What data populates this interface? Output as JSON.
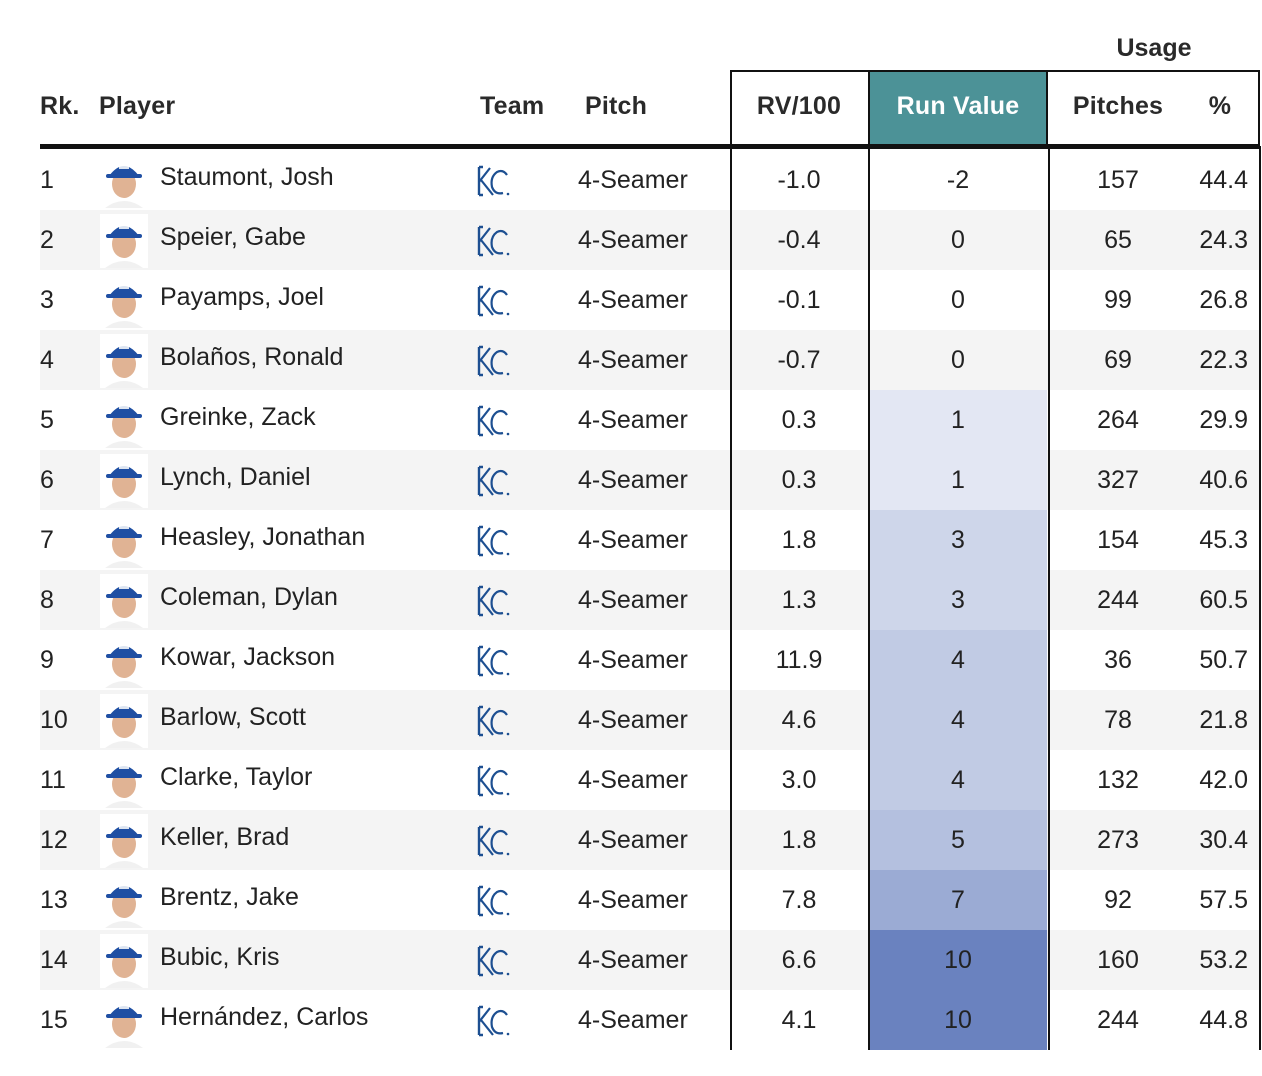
{
  "headers": {
    "rank": "Rk.",
    "player": "Player",
    "team": "Team",
    "pitch": "Pitch",
    "rv100": "RV/100",
    "run_value": "Run Value",
    "usage": "Usage",
    "pitches": "Pitches",
    "pct": "%"
  },
  "colors": {
    "run_value_header": "#4c9297",
    "heat_base": "#6a82bf",
    "team_logo": "#1d4f91"
  },
  "rows": [
    {
      "rank": "1",
      "player": "Staumont, Josh",
      "team_icon": "kc-royals-logo",
      "pitch": "4-Seamer",
      "rv100": "-1.0",
      "run_value": "-2",
      "pitches": "157",
      "pct": "44.4",
      "heat": 0
    },
    {
      "rank": "2",
      "player": "Speier, Gabe",
      "team_icon": "kc-royals-logo",
      "pitch": "4-Seamer",
      "rv100": "-0.4",
      "run_value": "0",
      "pitches": "65",
      "pct": "24.3",
      "heat": 0
    },
    {
      "rank": "3",
      "player": "Payamps, Joel",
      "team_icon": "kc-royals-logo",
      "pitch": "4-Seamer",
      "rv100": "-0.1",
      "run_value": "0",
      "pitches": "99",
      "pct": "26.8",
      "heat": 0
    },
    {
      "rank": "4",
      "player": "Bolaños, Ronald",
      "team_icon": "kc-royals-logo",
      "pitch": "4-Seamer",
      "rv100": "-0.7",
      "run_value": "0",
      "pitches": "69",
      "pct": "22.3",
      "heat": 0
    },
    {
      "rank": "5",
      "player": "Greinke, Zack",
      "team_icon": "kc-royals-logo",
      "pitch": "4-Seamer",
      "rv100": "0.3",
      "run_value": "1",
      "pitches": "264",
      "pct": "29.9",
      "heat": 0.06
    },
    {
      "rank": "6",
      "player": "Lynch, Daniel",
      "team_icon": "kc-royals-logo",
      "pitch": "4-Seamer",
      "rv100": "0.3",
      "run_value": "1",
      "pitches": "327",
      "pct": "40.6",
      "heat": 0.06
    },
    {
      "rank": "7",
      "player": "Heasley, Jonathan",
      "team_icon": "kc-royals-logo",
      "pitch": "4-Seamer",
      "rv100": "1.8",
      "run_value": "3",
      "pitches": "154",
      "pct": "45.3",
      "heat": 0.22
    },
    {
      "rank": "8",
      "player": "Coleman, Dylan",
      "team_icon": "kc-royals-logo",
      "pitch": "4-Seamer",
      "rv100": "1.3",
      "run_value": "3",
      "pitches": "244",
      "pct": "60.5",
      "heat": 0.22
    },
    {
      "rank": "9",
      "player": "Kowar, Jackson",
      "team_icon": "kc-royals-logo",
      "pitch": "4-Seamer",
      "rv100": "11.9",
      "run_value": "4",
      "pitches": "36",
      "pct": "50.7",
      "heat": 0.32
    },
    {
      "rank": "10",
      "player": "Barlow, Scott",
      "team_icon": "kc-royals-logo",
      "pitch": "4-Seamer",
      "rv100": "4.6",
      "run_value": "4",
      "pitches": "78",
      "pct": "21.8",
      "heat": 0.32
    },
    {
      "rank": "11",
      "player": "Clarke, Taylor",
      "team_icon": "kc-royals-logo",
      "pitch": "4-Seamer",
      "rv100": "3.0",
      "run_value": "4",
      "pitches": "132",
      "pct": "42.0",
      "heat": 0.32
    },
    {
      "rank": "12",
      "player": "Keller, Brad",
      "team_icon": "kc-royals-logo",
      "pitch": "4-Seamer",
      "rv100": "1.8",
      "run_value": "5",
      "pitches": "273",
      "pct": "30.4",
      "heat": 0.42
    },
    {
      "rank": "13",
      "player": "Brentz, Jake",
      "team_icon": "kc-royals-logo",
      "pitch": "4-Seamer",
      "rv100": "7.8",
      "run_value": "7",
      "pitches": "92",
      "pct": "57.5",
      "heat": 0.62
    },
    {
      "rank": "14",
      "player": "Bubic, Kris",
      "team_icon": "kc-royals-logo",
      "pitch": "4-Seamer",
      "rv100": "6.6",
      "run_value": "10",
      "pitches": "160",
      "pct": "53.2",
      "heat": 1.0
    },
    {
      "rank": "15",
      "player": "Hernández, Carlos",
      "team_icon": "kc-royals-logo",
      "pitch": "4-Seamer",
      "rv100": "4.1",
      "run_value": "10",
      "pitches": "244",
      "pct": "44.8",
      "heat": 1.0
    }
  ]
}
